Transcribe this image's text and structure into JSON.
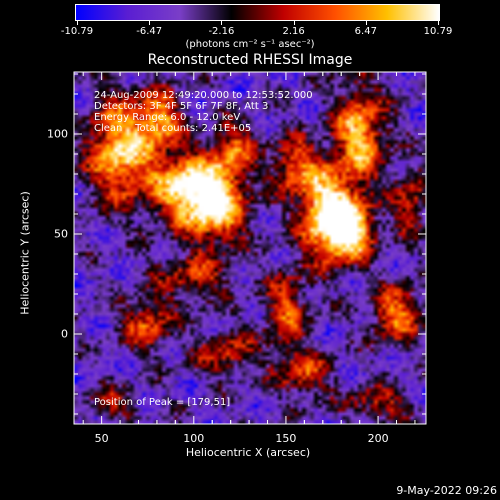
{
  "colorbar": {
    "tick_labels": [
      "-10.79",
      "-6.47",
      "-2.16",
      "2.16",
      "6.47",
      "10.79"
    ],
    "units": "(photons cm⁻² s⁻¹ asec⁻²)",
    "colors": [
      "#0000ff",
      "#5a1ed2",
      "#7a3ec8",
      "#000000",
      "#c00000",
      "#ff5000",
      "#ffc000",
      "#ffffff"
    ]
  },
  "chart_data": {
    "type": "heatmap",
    "title": "Reconstructed RHESSI Image",
    "xlabel": "Heliocentric X (arcsec)",
    "ylabel": "Heliocentric Y (arcsec)",
    "xlim": [
      35,
      226
    ],
    "ylim": [
      -45,
      131
    ],
    "xticks": [
      50,
      100,
      150,
      200
    ],
    "yticks": [
      0,
      50,
      100
    ],
    "value_range": [
      -10.79,
      10.79
    ],
    "peak_xy": [
      179,
      51
    ],
    "sources": [
      {
        "x": 60,
        "y": 92,
        "amp": 9.5,
        "sx": 12,
        "sy": 18
      },
      {
        "x": 82,
        "y": 107,
        "amp": 7.5,
        "sx": 8,
        "sy": 10
      },
      {
        "x": 95,
        "y": 74,
        "amp": 9.0,
        "sx": 13,
        "sy": 12
      },
      {
        "x": 112,
        "y": 64,
        "amp": 9.5,
        "sx": 12,
        "sy": 13
      },
      {
        "x": 122,
        "y": 92,
        "amp": 6.0,
        "sx": 8,
        "sy": 10
      },
      {
        "x": 100,
        "y": 28,
        "amp": 5.0,
        "sx": 14,
        "sy": 8
      },
      {
        "x": 75,
        "y": 5,
        "amp": 6.0,
        "sx": 10,
        "sy": 9
      },
      {
        "x": 172,
        "y": 60,
        "amp": 11.0,
        "sx": 10,
        "sy": 15
      },
      {
        "x": 185,
        "y": 52,
        "amp": 10.5,
        "sx": 9,
        "sy": 10
      },
      {
        "x": 190,
        "y": 100,
        "amp": 8.5,
        "sx": 10,
        "sy": 18
      },
      {
        "x": 155,
        "y": 84,
        "amp": 6.5,
        "sx": 9,
        "sy": 10
      },
      {
        "x": 210,
        "y": 10,
        "amp": 7.0,
        "sx": 10,
        "sy": 10
      },
      {
        "x": 218,
        "y": 66,
        "amp": 5.0,
        "sx": 7,
        "sy": 12
      },
      {
        "x": 150,
        "y": 12,
        "amp": 6.0,
        "sx": 8,
        "sy": 14
      },
      {
        "x": 160,
        "y": -20,
        "amp": 5.5,
        "sx": 10,
        "sy": 8
      },
      {
        "x": 118,
        "y": -10,
        "amp": 5.0,
        "sx": 12,
        "sy": 8
      },
      {
        "x": 55,
        "y": -35,
        "amp": 4.0,
        "sx": 10,
        "sy": 6
      },
      {
        "x": 200,
        "y": -35,
        "amp": 5.0,
        "sx": 12,
        "sy": 6
      }
    ]
  },
  "annotations": {
    "time_range": "24-Aug-2009 12:49:20.000 to 12:53:52.000",
    "detectors": "Detectors: 3F 4F 5F 6F 7F 8F, Att 3",
    "energy_range": "Energy Range: 6.0 - 12.0 keV",
    "method": "Clean    Total counts: 2.41E+05",
    "peak": "Position of Peak = [179,51]"
  },
  "footer": {
    "timestamp": "9-May-2022 09:26"
  }
}
